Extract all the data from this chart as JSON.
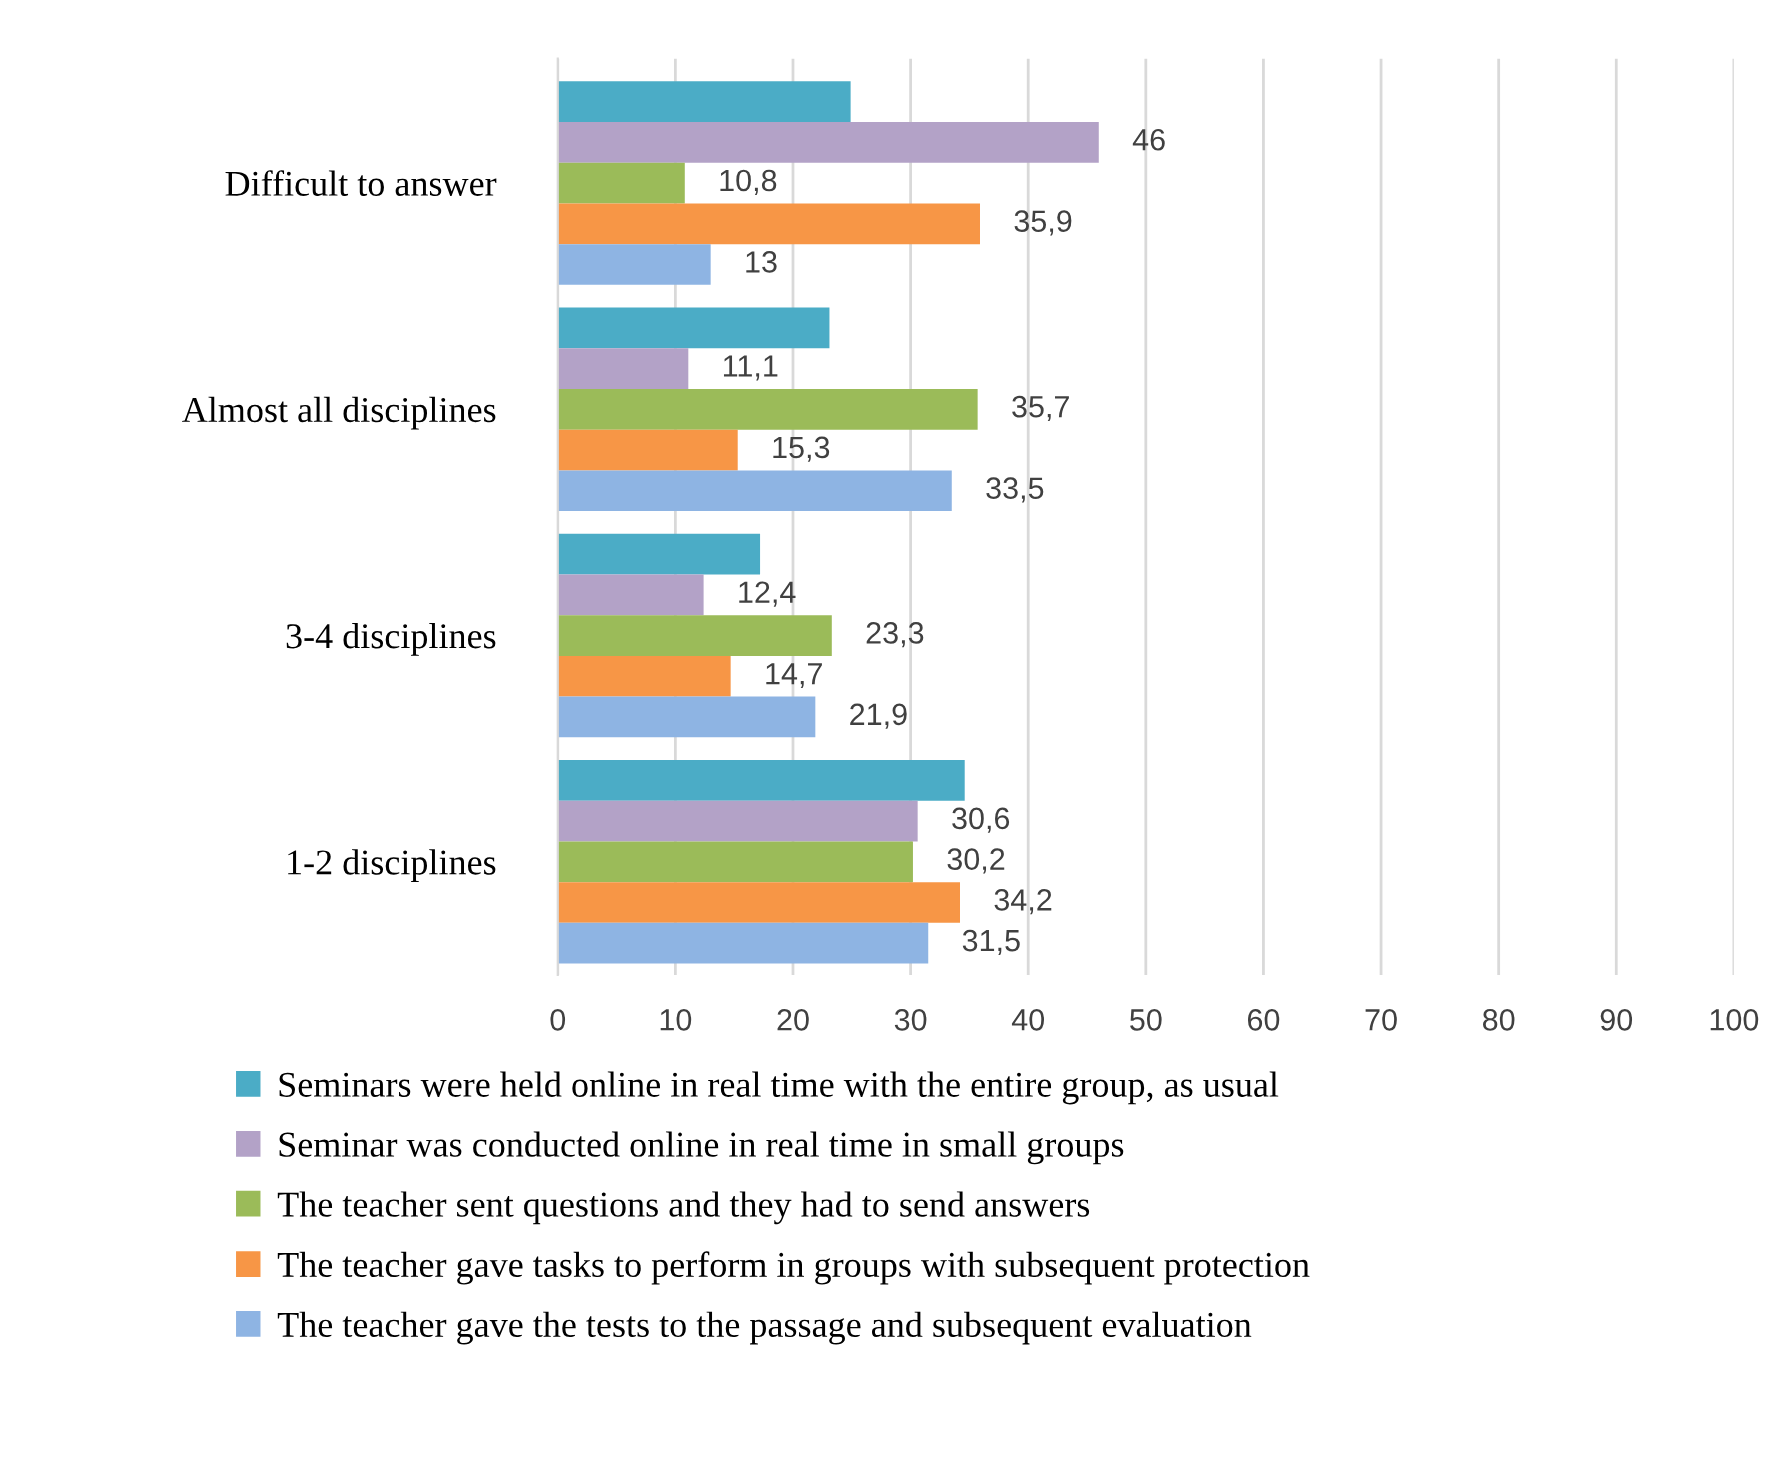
{
  "chart_data": {
    "type": "bar",
    "orientation": "horizontal",
    "categories": [
      "Difficult to answer",
      "Almost all disciplines",
      "3-4 disciplines",
      "1-2 disciplines"
    ],
    "series": [
      {
        "name": "Seminars were held online in real time with the entire group, as usual",
        "color": "#4bacc6",
        "values": [
          24.9,
          23.1,
          17.2,
          34.6
        ],
        "value_labels": [
          null,
          null,
          null,
          null
        ]
      },
      {
        "name": "Seminar was conducted online in real time in small groups",
        "color": "#b3a2c7",
        "values": [
          46,
          11.1,
          12.4,
          30.6
        ],
        "value_labels": [
          "46",
          "11,1",
          "12,4",
          "30,6"
        ]
      },
      {
        "name": "The teacher sent questions and they had to send answers",
        "color": "#9bbb59",
        "values": [
          10.8,
          35.7,
          23.3,
          30.2
        ],
        "value_labels": [
          "10,8",
          "35,7",
          "23,3",
          "30,2"
        ]
      },
      {
        "name": "The teacher gave tasks to perform in groups with subsequent protection",
        "color": "#f79646",
        "values": [
          35.9,
          15.3,
          14.7,
          34.2
        ],
        "value_labels": [
          "35,9",
          "15,3",
          "14,7",
          "34,2"
        ]
      },
      {
        "name": "The teacher gave the tests to the passage and subsequent evaluation",
        "color": "#8eb4e3",
        "values": [
          13,
          33.5,
          21.9,
          31.5
        ],
        "value_labels": [
          "13",
          "33,5",
          "21,9",
          "31,5"
        ]
      }
    ],
    "xlim": [
      0,
      100
    ],
    "xticks": [
      0,
      10,
      20,
      30,
      40,
      50,
      60,
      70,
      80,
      90,
      100
    ],
    "grid": "x",
    "legend": "bottom"
  }
}
